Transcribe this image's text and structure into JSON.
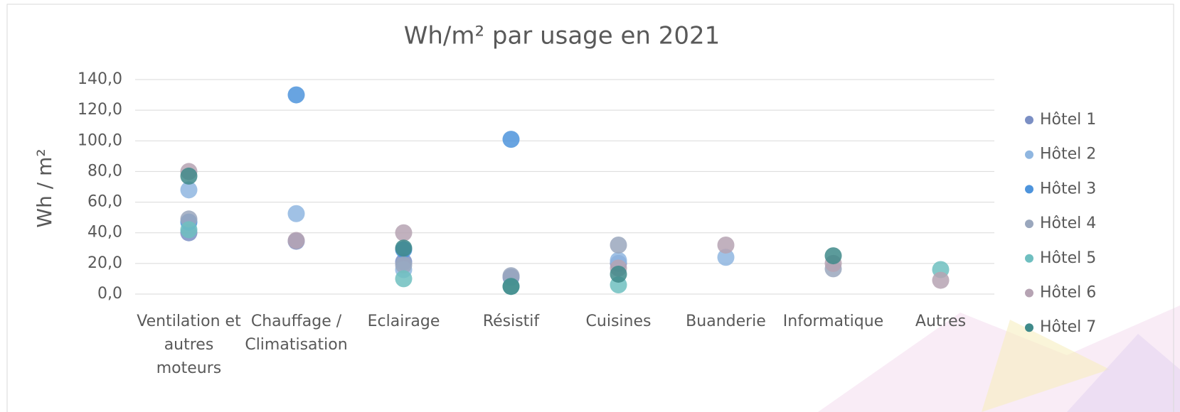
{
  "chart_data": {
    "type": "scatter",
    "title": "Wh/m² par usage en 2021",
    "y_label": "Wh / m²",
    "categories": [
      "Ventilation et autres moteurs",
      "Chauffage / Climatisation",
      "Eclairage",
      "Résistif",
      "Cuisines",
      "Buanderie",
      "Informatique",
      "Autres"
    ],
    "series": [
      {
        "name": "Hôtel 1",
        "color": "#7b8fc4",
        "values": [
          40,
          34.5,
          21,
          11,
          20,
          null,
          null,
          null
        ]
      },
      {
        "name": "Hôtel 2",
        "color": "#8fb6e0",
        "values": [
          68,
          52.5,
          16,
          null,
          22,
          24,
          null,
          null
        ]
      },
      {
        "name": "Hôtel 3",
        "color": "#4e94dc",
        "values": [
          47,
          130,
          29,
          101,
          null,
          null,
          null,
          null
        ]
      },
      {
        "name": "Hôtel 4",
        "color": "#9aa7bd",
        "values": [
          49,
          null,
          19,
          12,
          32,
          null,
          16.5,
          null
        ]
      },
      {
        "name": "Hôtel 5",
        "color": "#6fbfc0",
        "values": [
          42,
          null,
          10,
          5,
          6,
          null,
          null,
          16
        ]
      },
      {
        "name": "Hôtel 6",
        "color": "#b6a3b3",
        "values": [
          80,
          35,
          40,
          null,
          17,
          32,
          20,
          9
        ]
      },
      {
        "name": "Hôtel 7",
        "color": "#3f8a8a",
        "values": [
          77,
          null,
          30,
          5,
          13,
          null,
          25,
          null
        ]
      }
    ],
    "ylim": [
      0,
      140
    ],
    "yticks": [
      {
        "value": 0,
        "label": "0,0"
      },
      {
        "value": 20,
        "label": "20,0"
      },
      {
        "value": 40,
        "label": "40,0"
      },
      {
        "value": 60,
        "label": "60,0"
      },
      {
        "value": 80,
        "label": "80,0"
      },
      {
        "value": 100,
        "label": "100,0"
      },
      {
        "value": 120,
        "label": "120,0"
      },
      {
        "value": 140,
        "label": "140,0"
      }
    ],
    "grid": true,
    "legend": "right"
  }
}
